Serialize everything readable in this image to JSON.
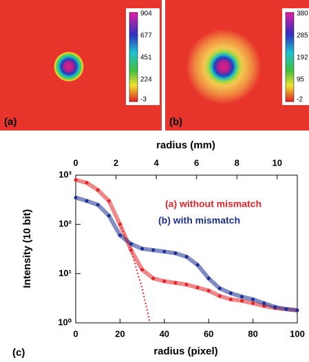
{
  "panels": [
    {
      "label": "(a)",
      "colorbar_ticks": [
        "904",
        "677",
        "451",
        "224",
        "-3"
      ]
    },
    {
      "label": "(b)",
      "colorbar_ticks": [
        "380",
        "285",
        "192",
        "95",
        "-2"
      ]
    }
  ],
  "chart_data": {
    "type": "scatter",
    "panel_label": "(c)",
    "xlabel": "radius (pixel)",
    "x2label": "radius (mm)",
    "ylabel": "Intensity (10 bit)",
    "x": [
      0,
      5,
      10,
      15,
      20,
      25,
      30,
      35,
      40,
      45,
      50,
      55,
      60,
      65,
      70,
      75,
      80,
      85,
      90,
      95,
      100
    ],
    "series": [
      {
        "name": "(a) without mismatch",
        "color": "#e0262a",
        "values": [
          800,
          700,
          500,
          300,
          100,
          30,
          12,
          8,
          7,
          6.5,
          6,
          5.2,
          4.5,
          3.5,
          3,
          2.8,
          2.5,
          2.2,
          2,
          1.9,
          1.8
        ]
      },
      {
        "name": "(b) with mismatch",
        "color": "#1c2f94",
        "values": [
          350,
          300,
          250,
          150,
          60,
          40,
          32,
          30,
          28,
          26,
          22,
          15,
          8,
          5,
          4,
          3.4,
          3,
          2.5,
          2.1,
          1.9,
          1.8
        ]
      }
    ],
    "fit": {
      "color": "#e0262a",
      "style": "dotted",
      "x": [
        20,
        25,
        28,
        30,
        32,
        33.5
      ],
      "values": [
        100,
        30,
        10,
        5,
        2,
        1
      ]
    },
    "xlim": [
      0,
      100
    ],
    "xticks": [
      0,
      20,
      40,
      60,
      80,
      100
    ],
    "x2lim": [
      0,
      11
    ],
    "x2ticks": [
      0,
      2,
      4,
      6,
      8,
      10
    ],
    "yscale": "log",
    "ylim": [
      1,
      1000
    ],
    "yticks": [
      {
        "value": 1,
        "label": "10⁰"
      },
      {
        "value": 10,
        "label": "10¹"
      },
      {
        "value": 100,
        "label": "10²"
      },
      {
        "value": 1000,
        "label": "10³"
      }
    ]
  }
}
